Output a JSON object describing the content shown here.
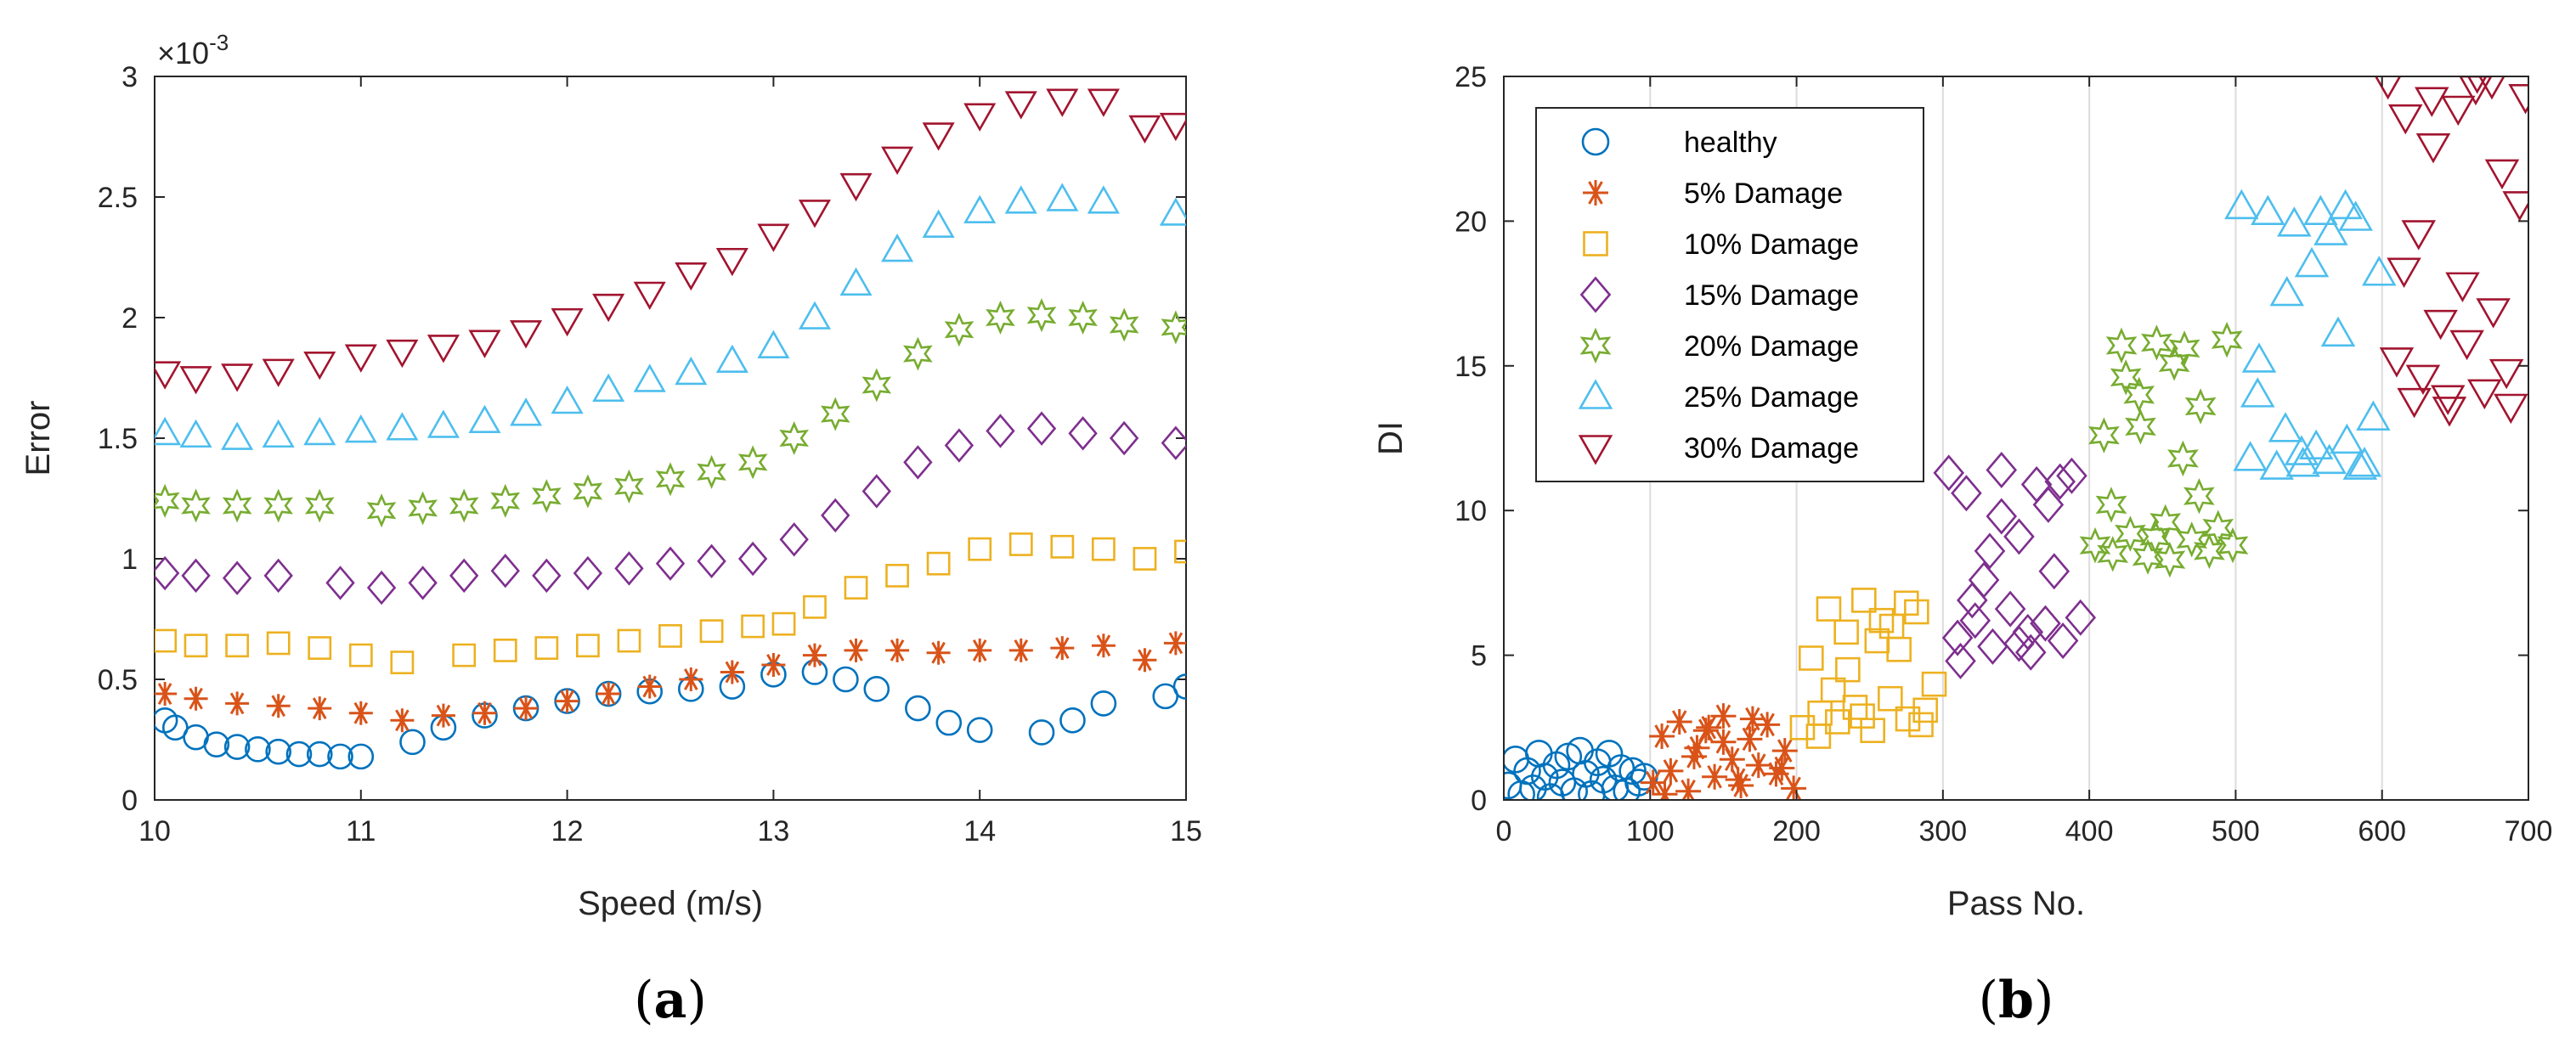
{
  "chart_data": [
    {
      "type": "scatter",
      "panel_label": "a",
      "xlabel": "Speed (m/s)",
      "ylabel": "Error",
      "y_exponent": "-3",
      "xlim": [
        10,
        15
      ],
      "ylim": [
        0,
        3
      ],
      "xticks": [
        "10",
        "11",
        "12",
        "13",
        "14",
        "15"
      ],
      "yticks": [
        "0",
        "0.5",
        "1",
        "1.5",
        "2",
        "2.5",
        "3"
      ],
      "grid": false,
      "series": [
        {
          "name": "healthy",
          "color": "#0072BD",
          "marker": "circle",
          "x": [
            10.05,
            10.1,
            10.2,
            10.3,
            10.4,
            10.5,
            10.6,
            10.7,
            10.8,
            10.9,
            11.0,
            11.25,
            11.4,
            11.6,
            11.8,
            12.0,
            12.2,
            12.4,
            12.6,
            12.8,
            13.0,
            13.2,
            13.35,
            13.5,
            13.7,
            13.85,
            14.0,
            14.3,
            14.45,
            14.6,
            14.9,
            15.0
          ],
          "y": [
            0.33,
            0.3,
            0.26,
            0.23,
            0.22,
            0.21,
            0.2,
            0.19,
            0.19,
            0.18,
            0.18,
            0.24,
            0.3,
            0.35,
            0.38,
            0.41,
            0.44,
            0.45,
            0.46,
            0.47,
            0.52,
            0.53,
            0.5,
            0.46,
            0.38,
            0.32,
            0.29,
            0.28,
            0.33,
            0.4,
            0.43,
            0.47
          ]
        },
        {
          "name": "5% Damage",
          "color": "#D95319",
          "marker": "asterisk",
          "x": [
            10.05,
            10.2,
            10.4,
            10.6,
            10.8,
            11.0,
            11.2,
            11.4,
            11.6,
            11.8,
            12.0,
            12.2,
            12.4,
            12.6,
            12.8,
            13.0,
            13.2,
            13.4,
            13.6,
            13.8,
            14.0,
            14.2,
            14.4,
            14.6,
            14.8,
            14.95
          ],
          "y": [
            0.44,
            0.42,
            0.4,
            0.39,
            0.38,
            0.36,
            0.33,
            0.35,
            0.36,
            0.38,
            0.41,
            0.44,
            0.47,
            0.5,
            0.53,
            0.56,
            0.6,
            0.62,
            0.62,
            0.61,
            0.62,
            0.62,
            0.63,
            0.64,
            0.58,
            0.65
          ]
        },
        {
          "name": "10% Damage",
          "color": "#EDB120",
          "marker": "square",
          "x": [
            10.05,
            10.2,
            10.4,
            10.6,
            10.8,
            11.0,
            11.2,
            11.5,
            11.7,
            11.9,
            12.1,
            12.3,
            12.5,
            12.7,
            12.9,
            13.05,
            13.2,
            13.4,
            13.6,
            13.8,
            14.0,
            14.2,
            14.4,
            14.6,
            14.8,
            15.0
          ],
          "y": [
            0.66,
            0.64,
            0.64,
            0.65,
            0.63,
            0.6,
            0.57,
            0.6,
            0.62,
            0.63,
            0.64,
            0.66,
            0.68,
            0.7,
            0.72,
            0.73,
            0.8,
            0.88,
            0.93,
            0.98,
            1.04,
            1.06,
            1.05,
            1.04,
            1.0,
            1.03
          ]
        },
        {
          "name": "15% Damage",
          "color": "#7E2F8E",
          "marker": "diamond",
          "x": [
            10.05,
            10.2,
            10.4,
            10.6,
            10.9,
            11.1,
            11.3,
            11.5,
            11.7,
            11.9,
            12.1,
            12.3,
            12.5,
            12.7,
            12.9,
            13.1,
            13.3,
            13.5,
            13.7,
            13.9,
            14.1,
            14.3,
            14.5,
            14.7,
            14.95
          ],
          "y": [
            0.94,
            0.93,
            0.92,
            0.93,
            0.9,
            0.88,
            0.9,
            0.93,
            0.95,
            0.93,
            0.94,
            0.96,
            0.98,
            0.99,
            1.0,
            1.08,
            1.18,
            1.28,
            1.4,
            1.47,
            1.53,
            1.54,
            1.52,
            1.5,
            1.48
          ]
        },
        {
          "name": "20% Damage",
          "color": "#77AC30",
          "marker": "star",
          "x": [
            10.05,
            10.2,
            10.4,
            10.6,
            10.8,
            11.1,
            11.3,
            11.5,
            11.7,
            11.9,
            12.1,
            12.3,
            12.5,
            12.7,
            12.9,
            13.1,
            13.3,
            13.5,
            13.7,
            13.9,
            14.1,
            14.3,
            14.5,
            14.7,
            14.95
          ],
          "y": [
            1.24,
            1.22,
            1.22,
            1.22,
            1.22,
            1.2,
            1.21,
            1.22,
            1.24,
            1.26,
            1.28,
            1.3,
            1.33,
            1.36,
            1.4,
            1.5,
            1.6,
            1.72,
            1.85,
            1.95,
            2.0,
            2.01,
            2.0,
            1.97,
            1.96
          ]
        },
        {
          "name": "25% Damage",
          "color": "#4DBEEE",
          "marker": "triangle-up",
          "x": [
            10.05,
            10.2,
            10.4,
            10.6,
            10.8,
            11.0,
            11.2,
            11.4,
            11.6,
            11.8,
            12.0,
            12.2,
            12.4,
            12.6,
            12.8,
            13.0,
            13.2,
            13.4,
            13.6,
            13.8,
            14.0,
            14.2,
            14.4,
            14.6,
            14.95
          ],
          "y": [
            1.52,
            1.51,
            1.5,
            1.51,
            1.52,
            1.53,
            1.54,
            1.55,
            1.57,
            1.6,
            1.65,
            1.7,
            1.74,
            1.77,
            1.82,
            1.88,
            2.0,
            2.14,
            2.28,
            2.38,
            2.44,
            2.48,
            2.49,
            2.48,
            2.43
          ]
        },
        {
          "name": "30% Damage",
          "color": "#A2142F",
          "marker": "triangle-down",
          "x": [
            10.05,
            10.2,
            10.4,
            10.6,
            10.8,
            11.0,
            11.2,
            11.4,
            11.6,
            11.8,
            12.0,
            12.2,
            12.4,
            12.6,
            12.8,
            13.0,
            13.2,
            13.4,
            13.6,
            13.8,
            14.0,
            14.2,
            14.4,
            14.6,
            14.8,
            14.95
          ],
          "y": [
            1.77,
            1.75,
            1.76,
            1.78,
            1.81,
            1.84,
            1.86,
            1.88,
            1.9,
            1.94,
            1.99,
            2.05,
            2.1,
            2.18,
            2.24,
            2.34,
            2.44,
            2.55,
            2.66,
            2.76,
            2.84,
            2.89,
            2.9,
            2.9,
            2.79,
            2.8
          ]
        }
      ]
    },
    {
      "type": "scatter",
      "panel_label": "b",
      "xlabel": "Pass No.",
      "ylabel": "DI",
      "xlim": [
        0,
        700
      ],
      "ylim": [
        0,
        25
      ],
      "xticks": [
        "0",
        "100",
        "200",
        "300",
        "400",
        "500",
        "600",
        "700"
      ],
      "yticks": [
        "0",
        "5",
        "10",
        "15",
        "20",
        "25"
      ],
      "grid": "vertical",
      "legend": "top-left",
      "series": [
        {
          "name": "healthy",
          "color": "#0072BD",
          "marker": "circle",
          "x": [
            3,
            8,
            12,
            16,
            20,
            24,
            28,
            32,
            36,
            40,
            44,
            48,
            52,
            56,
            60,
            64,
            68,
            72,
            76,
            80,
            84,
            88,
            92,
            96
          ],
          "y": [
            0.5,
            1.4,
            0.2,
            1.0,
            0.4,
            1.6,
            0.8,
            0.1,
            1.2,
            0.6,
            1.5,
            0.3,
            1.7,
            0.9,
            0.2,
            1.3,
            0.7,
            1.6,
            0.4,
            1.1,
            0.3,
            1.0,
            0.6,
            0.8
          ]
        },
        {
          "name": "5% Damage",
          "color": "#D95319",
          "marker": "asterisk",
          "x": [
            102,
            108,
            114,
            120,
            126,
            132,
            138,
            144,
            150,
            156,
            162,
            168,
            174,
            180,
            186,
            192,
            198,
            110,
            130,
            150,
            170,
            190,
            140,
            160
          ],
          "y": [
            0.6,
            2.2,
            1.0,
            2.7,
            0.3,
            1.8,
            2.4,
            0.8,
            2.9,
            1.4,
            0.5,
            2.1,
            1.2,
            2.6,
            0.9,
            1.7,
            0.4,
            0.2,
            1.5,
            2.0,
            2.8,
            1.1,
            2.5,
            0.7
          ]
        },
        {
          "name": "10% Damage",
          "color": "#EDB120",
          "marker": "square",
          "x": [
            204,
            210,
            216,
            222,
            228,
            234,
            240,
            246,
            252,
            258,
            264,
            270,
            276,
            282,
            288,
            294,
            215,
            235,
            255,
            275,
            225,
            245,
            265,
            285
          ],
          "y": [
            2.5,
            4.9,
            3.0,
            6.6,
            2.7,
            5.8,
            3.2,
            6.9,
            2.4,
            6.2,
            3.5,
            5.2,
            2.8,
            6.5,
            3.1,
            4.0,
            2.2,
            4.5,
            5.5,
            6.8,
            3.8,
            2.9,
            6.0,
            2.6
          ]
        },
        {
          "name": "15% Damage",
          "color": "#7E2F8E",
          "marker": "diamond",
          "x": [
            304,
            310,
            316,
            322,
            328,
            334,
            340,
            346,
            352,
            358,
            364,
            370,
            376,
            382,
            388,
            394,
            312,
            332,
            352,
            372,
            320,
            340,
            360,
            380
          ],
          "y": [
            11.3,
            5.6,
            10.6,
            6.2,
            7.6,
            5.3,
            11.4,
            6.6,
            9.1,
            5.8,
            10.9,
            6.1,
            7.9,
            5.5,
            11.2,
            6.3,
            4.8,
            8.6,
            5.4,
            10.2,
            6.9,
            9.8,
            5.1,
            11.0
          ]
        },
        {
          "name": "20% Damage",
          "color": "#77AC30",
          "marker": "star",
          "x": [
            404,
            410,
            416,
            422,
            428,
            434,
            440,
            446,
            452,
            458,
            464,
            470,
            476,
            482,
            488,
            494,
            498,
            415,
            435,
            455,
            475,
            465,
            445,
            425
          ],
          "y": [
            8.8,
            12.6,
            8.5,
            15.7,
            9.2,
            14.0,
            8.4,
            15.8,
            9.6,
            15.1,
            11.8,
            9.0,
            13.6,
            8.6,
            9.4,
            15.9,
            8.8,
            10.2,
            12.9,
            8.3,
            10.5,
            15.6,
            9.1,
            14.6
          ]
        },
        {
          "name": "25% Damage",
          "color": "#4DBEEE",
          "marker": "triangle-up",
          "x": [
            504,
            510,
            516,
            522,
            528,
            534,
            540,
            546,
            552,
            558,
            564,
            570,
            576,
            582,
            588,
            594,
            598,
            515,
            535,
            555,
            575,
            545,
            565,
            585
          ],
          "y": [
            20.5,
            11.8,
            15.2,
            20.3,
            11.5,
            12.8,
            19.9,
            11.6,
            18.5,
            20.3,
            11.7,
            16.1,
            12.4,
            20.1,
            11.6,
            13.2,
            18.2,
            14.0,
            17.5,
            12.2,
            20.5,
            12.0,
            19.6,
            11.5
          ]
        },
        {
          "name": "30% Damage",
          "color": "#A2142F",
          "marker": "triangle-down",
          "x": [
            604,
            610,
            616,
            622,
            628,
            634,
            640,
            646,
            652,
            658,
            664,
            670,
            676,
            682,
            688,
            694,
            698,
            615,
            635,
            655,
            675,
            625,
            645,
            665,
            685
          ],
          "y": [
            24.8,
            15.2,
            23.6,
            13.8,
            14.6,
            24.2,
            16.5,
            13.5,
            23.9,
            15.8,
            24.6,
            14.1,
            16.9,
            21.7,
            13.6,
            20.6,
            24.3,
            18.3,
            22.6,
            17.8,
            24.8,
            19.6,
            13.9,
            25.0,
            14.8
          ]
        }
      ]
    }
  ]
}
